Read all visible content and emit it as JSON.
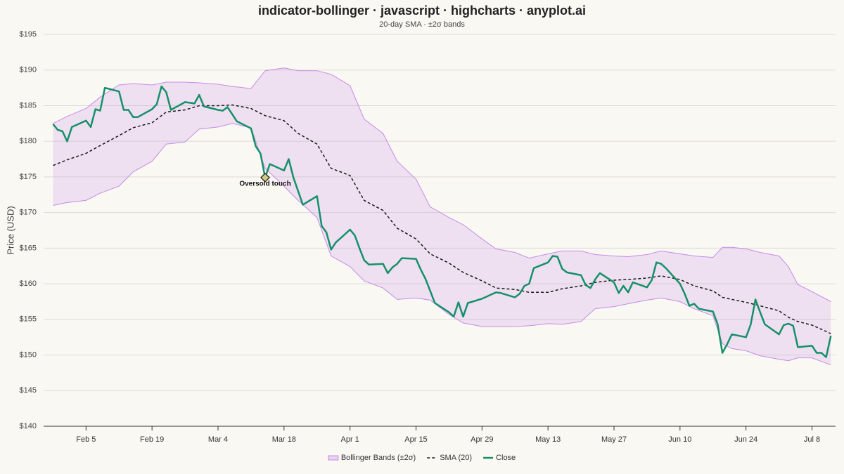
{
  "chart_data": {
    "type": "line",
    "title": "indicator-bollinger · javascript · highcharts · anyplot.ai",
    "subtitle": "20-day SMA · ±2σ bands",
    "y_label": "Price (USD)",
    "xlim": [
      "Jan 27",
      "Jul 13"
    ],
    "xticks": [
      "Feb 5",
      "Feb 19",
      "Mar 4",
      "Mar 18",
      "Apr 1",
      "Apr 15",
      "Apr 29",
      "May 13",
      "May 27",
      "Jun 10",
      "Jun 24",
      "Jul 8"
    ],
    "ylim": [
      140,
      195
    ],
    "yticks": [
      {
        "value": 140,
        "label": "$140"
      },
      {
        "value": 145,
        "label": "$145"
      },
      {
        "value": 150,
        "label": "$150"
      },
      {
        "value": 155,
        "label": "$155"
      },
      {
        "value": 160,
        "label": "$160"
      },
      {
        "value": 165,
        "label": "$165"
      },
      {
        "value": 170,
        "label": "$170"
      },
      {
        "value": 175,
        "label": "$175"
      },
      {
        "value": 180,
        "label": "$180"
      },
      {
        "value": 185,
        "label": "$185"
      },
      {
        "value": 190,
        "label": "$190"
      },
      {
        "value": 195,
        "label": "$195"
      }
    ],
    "grid": true,
    "legend": "bottom",
    "series": [
      {
        "name": "Bollinger Bands (±2σ)",
        "kind": "band",
        "color": "#c58be8",
        "x": [
          "Jan 29",
          "Feb 1",
          "Feb 5",
          "Feb 8",
          "Feb 12",
          "Feb 15",
          "Feb 19",
          "Feb 22",
          "Feb 26",
          "Feb 29",
          "Mar 4",
          "Mar 7",
          "Mar 11",
          "Mar 14",
          "Mar 18",
          "Mar 21",
          "Mar 25",
          "Mar 28",
          "Apr 1",
          "Apr 4",
          "Apr 8",
          "Apr 11",
          "Apr 15",
          "Apr 18",
          "Apr 22",
          "Apr 25",
          "Apr 29",
          "May 2",
          "May 6",
          "May 9",
          "May 13",
          "May 16",
          "May 20",
          "May 23",
          "May 27",
          "May 30",
          "Jun 3",
          "Jun 6",
          "Jun 10",
          "Jun 13",
          "Jun 17",
          "Jun 19",
          "Jun 21",
          "Jun 24",
          "Jun 27",
          "Jul 1",
          "Jul 3",
          "Jul 5",
          "Jul 8",
          "Jul 12"
        ],
        "upper": [
          182.5,
          183.5,
          184.6,
          186.2,
          187.9,
          188.1,
          187.9,
          188.3,
          188.3,
          188.2,
          188.0,
          187.7,
          187.4,
          189.9,
          190.3,
          189.9,
          189.9,
          189.4,
          187.8,
          183.1,
          181.1,
          177.2,
          174.7,
          170.8,
          169.3,
          168.3,
          166.3,
          164.9,
          164.4,
          163.6,
          164.2,
          164.6,
          164.6,
          164.1,
          163.9,
          163.8,
          164.1,
          164.6,
          164.2,
          163.9,
          163.7,
          165.1,
          165.1,
          164.9,
          164.4,
          163.9,
          162.4,
          159.9,
          158.9,
          157.5
        ],
        "lower": [
          171.0,
          171.4,
          171.7,
          172.7,
          173.7,
          175.7,
          177.2,
          179.6,
          179.9,
          181.7,
          182.0,
          182.5,
          181.9,
          176.2,
          173.7,
          171.7,
          169.3,
          163.9,
          162.4,
          160.4,
          159.4,
          157.8,
          158.0,
          157.7,
          155.7,
          154.5,
          154.0,
          154.0,
          154.0,
          154.1,
          154.4,
          154.3,
          154.7,
          156.5,
          156.8,
          157.2,
          157.7,
          158.0,
          157.5,
          156.5,
          155.5,
          151.6,
          150.9,
          150.6,
          149.9,
          149.4,
          149.2,
          149.6,
          149.6,
          148.6
        ]
      },
      {
        "name": "SMA (20)",
        "kind": "dashed",
        "color": "#1a1a1a",
        "x": [
          "Jan 29",
          "Feb 1",
          "Feb 5",
          "Feb 8",
          "Feb 12",
          "Feb 15",
          "Feb 19",
          "Feb 22",
          "Feb 26",
          "Feb 29",
          "Mar 4",
          "Mar 7",
          "Mar 11",
          "Mar 14",
          "Mar 18",
          "Mar 21",
          "Mar 25",
          "Mar 28",
          "Apr 1",
          "Apr 4",
          "Apr 8",
          "Apr 11",
          "Apr 15",
          "Apr 18",
          "Apr 22",
          "Apr 25",
          "Apr 29",
          "May 2",
          "May 6",
          "May 9",
          "May 13",
          "May 16",
          "May 20",
          "May 23",
          "May 27",
          "May 30",
          "Jun 3",
          "Jun 6",
          "Jun 10",
          "Jun 13",
          "Jun 17",
          "Jun 19",
          "Jun 21",
          "Jun 24",
          "Jun 27",
          "Jul 1",
          "Jul 3",
          "Jul 5",
          "Jul 8",
          "Jul 12"
        ],
        "values": [
          176.6,
          177.4,
          178.3,
          179.4,
          180.8,
          181.9,
          182.6,
          184.1,
          184.4,
          185.0,
          185.0,
          185.1,
          184.6,
          183.6,
          182.9,
          181.1,
          179.6,
          176.2,
          175.2,
          171.7,
          170.3,
          167.8,
          166.3,
          164.2,
          162.9,
          161.6,
          160.4,
          159.4,
          159.2,
          158.8,
          158.8,
          159.3,
          159.7,
          160.2,
          160.5,
          160.6,
          160.8,
          161.1,
          160.6,
          159.7,
          159.0,
          158.1,
          157.8,
          157.4,
          156.9,
          156.2,
          155.3,
          154.7,
          154.2,
          153.0
        ]
      },
      {
        "name": "Close",
        "kind": "solid",
        "color": "#15906a",
        "x": [
          "Jan 29",
          "Jan 30",
          "Jan 31",
          "Feb 1",
          "Feb 2",
          "Feb 5",
          "Feb 6",
          "Feb 7",
          "Feb 8",
          "Feb 9",
          "Feb 12",
          "Feb 13",
          "Feb 14",
          "Feb 15",
          "Feb 16",
          "Feb 19",
          "Feb 20",
          "Feb 21",
          "Feb 22",
          "Feb 23",
          "Feb 26",
          "Feb 27",
          "Feb 28",
          "Feb 29",
          "Mar 1",
          "Mar 4",
          "Mar 5",
          "Mar 6",
          "Mar 7",
          "Mar 8",
          "Mar 11",
          "Mar 12",
          "Mar 13",
          "Mar 14",
          "Mar 15",
          "Mar 18",
          "Mar 19",
          "Mar 20",
          "Mar 21",
          "Mar 22",
          "Mar 25",
          "Mar 26",
          "Mar 27",
          "Mar 28",
          "Mar 29",
          "Apr 1",
          "Apr 2",
          "Apr 3",
          "Apr 4",
          "Apr 5",
          "Apr 8",
          "Apr 9",
          "Apr 10",
          "Apr 11",
          "Apr 12",
          "Apr 15",
          "Apr 16",
          "Apr 17",
          "Apr 18",
          "Apr 19",
          "Apr 22",
          "Apr 23",
          "Apr 24",
          "Apr 25",
          "Apr 26",
          "Apr 29",
          "Apr 30",
          "May 1",
          "May 2",
          "May 3",
          "May 6",
          "May 7",
          "May 8",
          "May 9",
          "May 10",
          "May 13",
          "May 14",
          "May 15",
          "May 16",
          "May 17",
          "May 20",
          "May 21",
          "May 22",
          "May 23",
          "May 24",
          "May 27",
          "May 28",
          "May 29",
          "May 30",
          "May 31",
          "Jun 3",
          "Jun 4",
          "Jun 5",
          "Jun 6",
          "Jun 7",
          "Jun 10",
          "Jun 11",
          "Jun 12",
          "Jun 13",
          "Jun 14",
          "Jun 17",
          "Jun 18",
          "Jun 19",
          "Jun 20",
          "Jun 21",
          "Jun 24",
          "Jun 25",
          "Jun 26",
          "Jun 27",
          "Jun 28",
          "Jul 1",
          "Jul 2",
          "Jul 3",
          "Jul 4",
          "Jul 5",
          "Jul 8",
          "Jul 9",
          "Jul 10",
          "Jul 11",
          "Jul 12"
        ],
        "values": [
          182.4,
          181.6,
          181.4,
          180.0,
          182.0,
          182.9,
          182.0,
          184.5,
          184.3,
          187.5,
          187.0,
          184.4,
          184.4,
          183.4,
          183.4,
          184.5,
          185.2,
          187.7,
          186.9,
          184.4,
          185.5,
          185.4,
          185.3,
          186.5,
          184.9,
          184.4,
          184.3,
          184.8,
          183.8,
          182.8,
          181.8,
          179.3,
          178.3,
          174.9,
          176.8,
          175.9,
          177.5,
          174.9,
          173.0,
          171.1,
          172.3,
          168.1,
          167.2,
          164.8,
          165.8,
          167.6,
          166.8,
          165.0,
          163.3,
          162.7,
          162.8,
          161.5,
          162.3,
          162.8,
          163.6,
          163.5,
          162.0,
          160.7,
          159.0,
          157.3,
          156.0,
          155.4,
          157.4,
          155.4,
          157.3,
          157.9,
          158.2,
          158.5,
          158.8,
          158.7,
          158.1,
          158.6,
          159.7,
          160.0,
          162.2,
          163.0,
          163.9,
          163.8,
          162.1,
          161.6,
          161.2,
          159.8,
          159.4,
          160.6,
          161.5,
          160.2,
          158.7,
          159.7,
          158.8,
          160.2,
          159.5,
          160.5,
          163.0,
          162.8,
          162.2,
          160.0,
          158.6,
          156.9,
          157.2,
          156.5,
          156.1,
          154.3,
          150.3,
          151.5,
          152.9,
          152.5,
          154.3,
          157.8,
          156.0,
          154.3,
          152.9,
          154.2,
          154.4,
          154.1,
          151.1,
          151.3,
          150.3,
          150.3,
          149.7,
          152.7
        ]
      }
    ],
    "annotations": [
      {
        "text": "Oversold touch",
        "x": "Mar 14",
        "y": 174.9
      }
    ]
  }
}
